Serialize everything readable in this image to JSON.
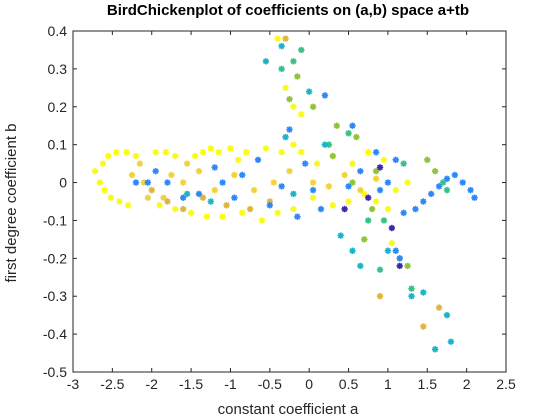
{
  "chart_data": {
    "type": "scatter",
    "title": "BirdChickenplot of coefficients on (a,b) space a+tb",
    "xlabel": "constant coefficient a",
    "ylabel": "first degree coefficient b",
    "xlim": [
      -3,
      2.5
    ],
    "ylim": [
      -0.5,
      0.4
    ],
    "xticks": [
      "-3",
      "-2.5",
      "-2",
      "-1.5",
      "-1",
      "-0.5",
      "0",
      "0.5",
      "1",
      "1.5",
      "2",
      "2.5"
    ],
    "yticks": [
      "-0.5",
      "-0.4",
      "-0.3",
      "-0.2",
      "-0.1",
      "0",
      "0.1",
      "0.2",
      "0.3",
      "0.4"
    ],
    "grid": false,
    "marker": "asterisk",
    "colormap": [
      "#3e26a8",
      "#2e87f7",
      "#18b5c8",
      "#37c187",
      "#8fc438",
      "#e0b33a",
      "#f0d33a",
      "#f9fb15"
    ],
    "series": [
      {
        "color": "#f9fb15",
        "points": [
          [
            -2.72,
            0.03
          ],
          [
            -2.66,
            0.0
          ],
          [
            -2.6,
            -0.02
          ],
          [
            -2.52,
            -0.04
          ],
          [
            -2.41,
            -0.05
          ],
          [
            -2.3,
            -0.06
          ],
          [
            -2.62,
            0.05
          ],
          [
            -2.55,
            0.07
          ],
          [
            -2.45,
            0.08
          ],
          [
            -2.32,
            0.08
          ],
          [
            -2.2,
            0.07
          ],
          [
            -1.95,
            0.08
          ],
          [
            -1.82,
            0.08
          ],
          [
            -1.7,
            0.07
          ],
          [
            -1.45,
            0.07
          ],
          [
            -1.35,
            0.08
          ],
          [
            -1.25,
            0.09
          ],
          [
            -1.15,
            0.08
          ],
          [
            -1.0,
            0.09
          ],
          [
            -0.9,
            0.06
          ],
          [
            -0.8,
            0.08
          ],
          [
            -0.55,
            0.09
          ],
          [
            -0.35,
            0.08
          ],
          [
            -0.2,
            0.1
          ],
          [
            -0.1,
            0.08
          ],
          [
            0.1,
            0.05
          ],
          [
            0.3,
            0.07
          ],
          [
            0.55,
            0.05
          ],
          [
            0.75,
            0.08
          ],
          [
            0.95,
            0.06
          ],
          [
            1.1,
            -0.02
          ],
          [
            1.25,
            0.0
          ],
          [
            -1.9,
            -0.06
          ],
          [
            -1.7,
            -0.07
          ],
          [
            -1.5,
            -0.08
          ],
          [
            -1.3,
            -0.09
          ],
          [
            -1.1,
            -0.09
          ],
          [
            -0.85,
            -0.08
          ],
          [
            -0.6,
            -0.1
          ],
          [
            -0.4,
            -0.08
          ],
          [
            -0.2,
            -0.07
          ],
          [
            0.05,
            -0.04
          ],
          [
            0.3,
            -0.06
          ],
          [
            0.5,
            -0.05
          ],
          [
            0.7,
            -0.03
          ],
          [
            0.85,
            -0.05
          ],
          [
            1.0,
            -0.07
          ],
          [
            -0.4,
            0.38
          ],
          [
            -0.3,
            0.25
          ],
          [
            -0.2,
            0.2
          ],
          [
            -0.1,
            0.18
          ],
          [
            1.05,
            -0.16
          ]
        ]
      },
      {
        "color": "#f0d33a",
        "points": [
          [
            -2.15,
            0.05
          ],
          [
            -2.1,
            0.0
          ],
          [
            -2.05,
            -0.04
          ],
          [
            -1.75,
            0.02
          ],
          [
            -1.6,
            0.0
          ],
          [
            -1.4,
            0.03
          ],
          [
            -1.2,
            -0.02
          ],
          [
            -0.95,
            0.02
          ],
          [
            -0.7,
            -0.02
          ],
          [
            -0.45,
            0.0
          ],
          [
            -0.25,
            0.03
          ],
          [
            0.05,
            0.0
          ],
          [
            0.25,
            -0.01
          ],
          [
            0.45,
            0.02
          ],
          [
            0.65,
            -0.02
          ],
          [
            0.85,
            0.01
          ],
          [
            -2.25,
            0.02
          ],
          [
            -1.85,
            -0.04
          ],
          [
            -1.55,
            0.05
          ]
        ]
      },
      {
        "color": "#e0b33a",
        "points": [
          [
            -2.0,
            -0.02
          ],
          [
            -1.8,
            -0.05
          ],
          [
            -1.6,
            -0.07
          ],
          [
            -1.35,
            -0.04
          ],
          [
            -1.05,
            -0.06
          ],
          [
            -0.75,
            -0.07
          ],
          [
            -0.5,
            -0.05
          ],
          [
            -0.3,
            0.38
          ],
          [
            0.9,
            -0.3
          ],
          [
            1.45,
            -0.38
          ],
          [
            1.65,
            -0.33
          ]
        ]
      },
      {
        "color": "#8fc438",
        "points": [
          [
            -0.25,
            0.22
          ],
          [
            -0.15,
            0.28
          ],
          [
            0.05,
            0.2
          ],
          [
            0.35,
            0.15
          ],
          [
            0.6,
            0.12
          ],
          [
            0.3,
            0.07
          ],
          [
            0.55,
            0.0
          ],
          [
            0.8,
            -0.07
          ],
          [
            0.7,
            -0.15
          ],
          [
            1.15,
            -0.2
          ],
          [
            1.25,
            -0.22
          ],
          [
            1.5,
            0.06
          ],
          [
            1.6,
            0.03
          ],
          [
            0.85,
            0.03
          ]
        ]
      },
      {
        "color": "#37c187",
        "points": [
          [
            -0.35,
            0.3
          ],
          [
            -0.2,
            0.32
          ],
          [
            -0.1,
            0.35
          ],
          [
            0.25,
            0.1
          ],
          [
            0.5,
            0.13
          ],
          [
            0.75,
            -0.1
          ],
          [
            0.95,
            -0.1
          ],
          [
            0.9,
            -0.23
          ],
          [
            1.3,
            -0.28
          ],
          [
            1.7,
            0.0
          ],
          [
            1.75,
            -0.02
          ],
          [
            1.2,
            0.05
          ]
        ]
      },
      {
        "color": "#18b5c8",
        "points": [
          [
            -0.35,
            0.36
          ],
          [
            -0.3,
            0.12
          ],
          [
            -0.2,
            -0.03
          ],
          [
            0.0,
            0.24
          ],
          [
            0.2,
            0.1
          ],
          [
            0.4,
            -0.14
          ],
          [
            0.55,
            -0.18
          ],
          [
            0.65,
            -0.22
          ],
          [
            1.0,
            -0.18
          ],
          [
            1.3,
            -0.3
          ],
          [
            1.45,
            -0.29
          ],
          [
            1.6,
            -0.44
          ],
          [
            1.75,
            -0.35
          ],
          [
            1.8,
            -0.42
          ],
          [
            -0.55,
            0.32
          ],
          [
            -1.55,
            -0.03
          ],
          [
            -1.25,
            -0.05
          ]
        ]
      },
      {
        "color": "#2e87f7",
        "points": [
          [
            -2.05,
            0.0
          ],
          [
            -1.95,
            0.03
          ],
          [
            -1.8,
            0.0
          ],
          [
            -1.6,
            -0.04
          ],
          [
            -1.4,
            -0.03
          ],
          [
            -1.2,
            0.04
          ],
          [
            -1.1,
            0.0
          ],
          [
            -0.95,
            -0.04
          ],
          [
            -0.85,
            0.02
          ],
          [
            -0.65,
            0.06
          ],
          [
            -0.5,
            -0.06
          ],
          [
            -0.35,
            -0.01
          ],
          [
            -0.15,
            -0.09
          ],
          [
            -0.05,
            0.05
          ],
          [
            0.15,
            -0.07
          ],
          [
            0.2,
            0.23
          ],
          [
            0.5,
            -0.01
          ],
          [
            0.65,
            0.03
          ],
          [
            0.9,
            -0.02
          ],
          [
            1.0,
            0.0
          ],
          [
            1.1,
            0.06
          ],
          [
            1.2,
            -0.08
          ],
          [
            1.35,
            -0.07
          ],
          [
            1.45,
            -0.05
          ],
          [
            1.55,
            -0.03
          ],
          [
            1.65,
            -0.01
          ],
          [
            1.75,
            0.01
          ],
          [
            1.85,
            0.02
          ],
          [
            1.95,
            0.0
          ],
          [
            2.05,
            -0.02
          ],
          [
            2.1,
            -0.04
          ],
          [
            0.55,
            0.15
          ],
          [
            0.85,
            0.08
          ],
          [
            1.1,
            -0.18
          ],
          [
            1.15,
            -0.2
          ],
          [
            -0.25,
            0.14
          ],
          [
            -2.2,
            0.0
          ],
          [
            0.05,
            -0.02
          ]
        ]
      },
      {
        "color": "#3e26a8",
        "points": [
          [
            0.45,
            -0.07
          ],
          [
            0.75,
            -0.04
          ],
          [
            1.05,
            -0.12
          ],
          [
            0.9,
            0.04
          ],
          [
            1.15,
            -0.22
          ]
        ]
      }
    ]
  }
}
